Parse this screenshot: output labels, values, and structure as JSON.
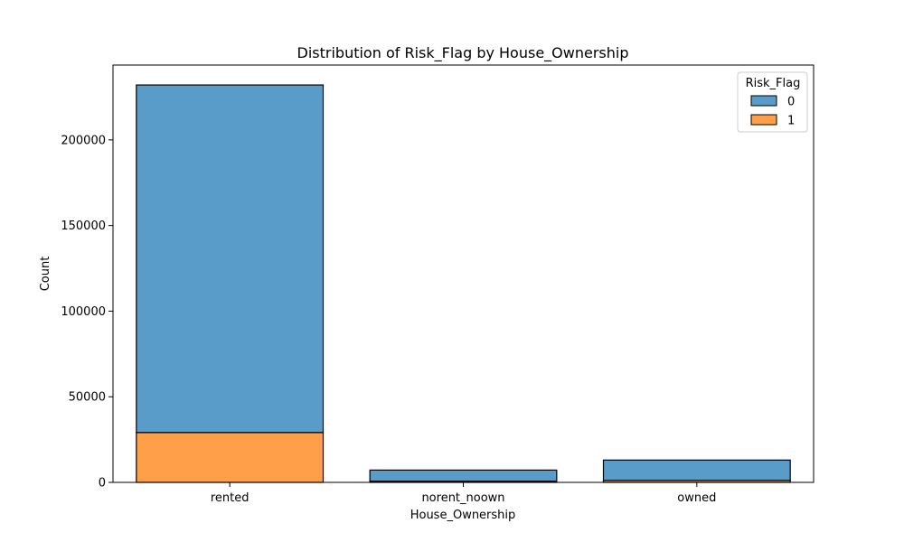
{
  "chart_data": {
    "type": "bar",
    "stacked": true,
    "title": "Distribution of Risk_Flag by House_Ownership",
    "xlabel": "House_Ownership",
    "ylabel": "Count",
    "categories": [
      "rented",
      "norent_noown",
      "owned"
    ],
    "ylim": [
      0,
      243700
    ],
    "yticks": [
      0,
      50000,
      100000,
      150000,
      200000
    ],
    "grid": false,
    "legend": {
      "title": "Risk_Flag",
      "placement": "top-right"
    },
    "series": [
      {
        "name": "1",
        "color": "#ff9f4a",
        "values": [
          29121,
          715,
          1160
        ]
      },
      {
        "name": "0",
        "color": "#599bc9",
        "values": [
          202934,
          6469,
          11876
        ]
      }
    ],
    "legend_order": [
      "0",
      "1"
    ]
  }
}
